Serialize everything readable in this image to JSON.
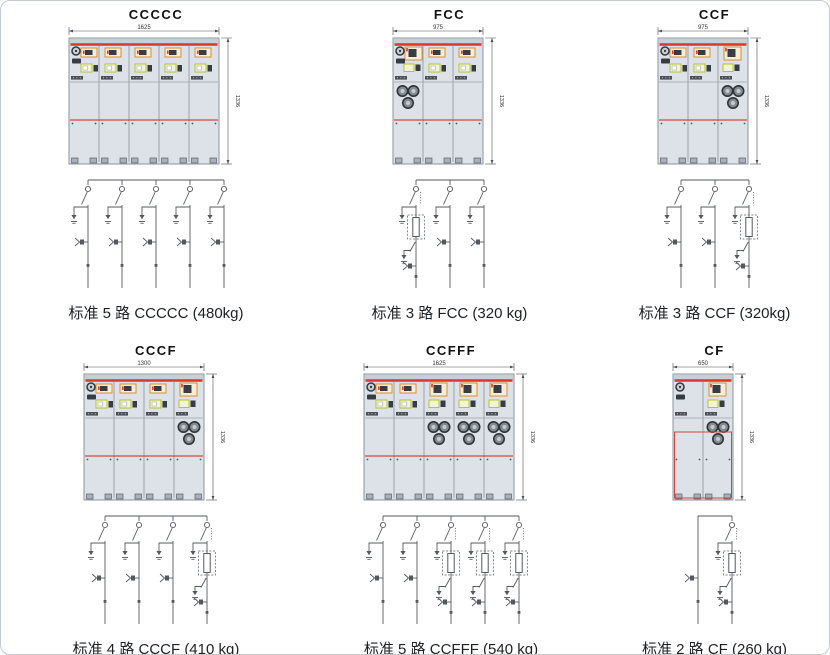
{
  "page": {
    "background": "#ffffff",
    "border_color": "#c5cad0"
  },
  "colors": {
    "accent_red": "#e03428",
    "mid_red": "#d5453c",
    "cabinet_fill": "#dde2e8",
    "cabinet_top_band": "#c9cfd6",
    "cabinet_stroke": "#8d949c",
    "panel_line": "#9aa1a9",
    "orange_box": "#d88f2f",
    "orange_fill": "#f6ecd9",
    "green_box": "#b5c32d",
    "green_fill": "#f1f4da",
    "dark_part": "#373c42",
    "fuse_ring": "#2e3338",
    "fuse_fill": "#848b93",
    "fuse_center": "#c6cbd1",
    "foot_fill": "#aab0b7",
    "foot_stroke": "#5c6168",
    "schematic_line": "#55595e",
    "dim_line": "#4a4e53",
    "dim_text": "#333333"
  },
  "units": [
    {
      "title": "CCCCC",
      "caption": "标准 5 路 CCCCC (480kg)",
      "width_label": "1625",
      "height_label": "1336",
      "panels": [
        "C",
        "C",
        "C",
        "C",
        "C"
      ],
      "branches": [
        "C",
        "C",
        "C",
        "C",
        "C"
      ],
      "lower_red_outline": false
    },
    {
      "title": "FCC",
      "caption": "标准 3 路 FCC (320 kg)",
      "width_label": "975",
      "height_label": "1336",
      "panels": [
        "F",
        "C",
        "C"
      ],
      "branches": [
        "F",
        "C",
        "C"
      ],
      "lower_red_outline": false
    },
    {
      "title": "CCF",
      "caption": "标准 3 路 CCF (320kg)",
      "width_label": "975",
      "height_label": "1336",
      "panels": [
        "C",
        "C",
        "F"
      ],
      "branches": [
        "C",
        "C",
        "F"
      ],
      "lower_red_outline": false
    },
    {
      "title": "CCCF",
      "caption": "标准 4 路 CCCF (410 kg)",
      "width_label": "1300",
      "height_label": "1336",
      "panels": [
        "C",
        "C",
        "C",
        "F"
      ],
      "branches": [
        "C",
        "C",
        "C",
        "F"
      ],
      "lower_red_outline": false
    },
    {
      "title": "CCFFF",
      "caption": "标准 5 路 CCFFF (540 kg)",
      "width_label": "1625",
      "height_label": "1336",
      "panels": [
        "C",
        "C",
        "F",
        "F",
        "F"
      ],
      "branches": [
        "C",
        "C",
        "F",
        "F",
        "F"
      ],
      "lower_red_outline": false
    },
    {
      "title": "CF",
      "caption": "标准 2 路 CF (260 kg)",
      "width_label": "650",
      "height_label": "1336",
      "panels": [
        "P",
        "F"
      ],
      "branches": [
        "P",
        "F"
      ],
      "lower_red_outline": true
    }
  ]
}
